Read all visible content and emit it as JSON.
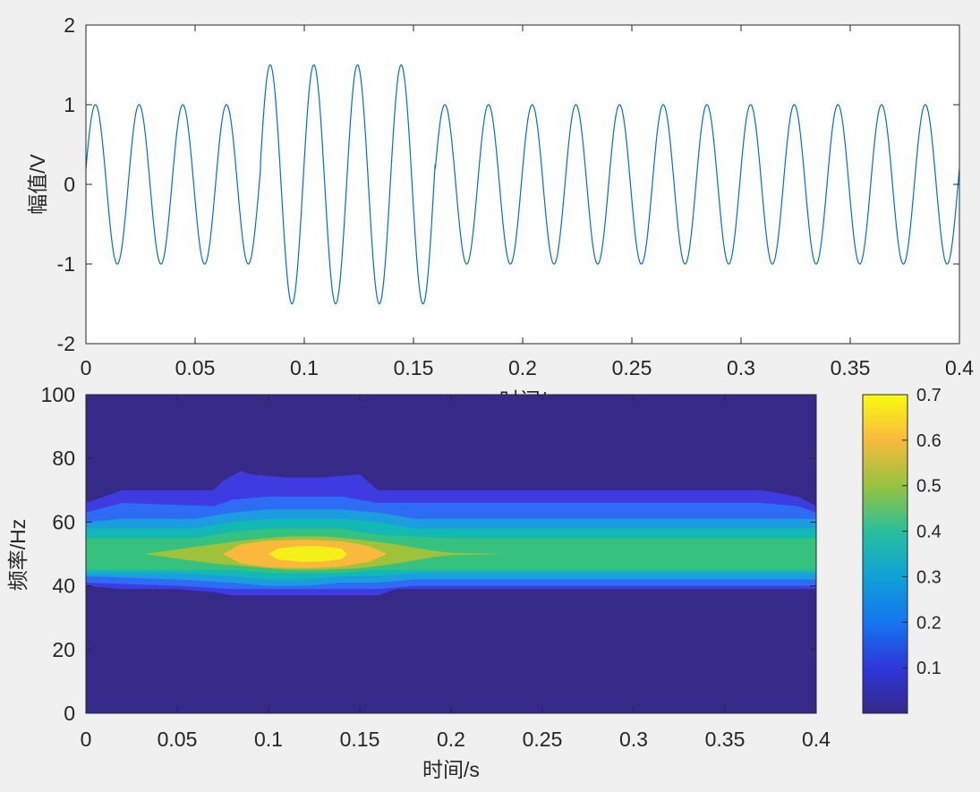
{
  "chart_data": [
    {
      "type": "line",
      "title": "",
      "xlabel": "时间/",
      "ylabel": "幅值/V",
      "xlim": [
        0,
        0.4
      ],
      "ylim": [
        -2,
        2
      ],
      "xticks": [
        "0",
        "0.05",
        "0.1",
        "0.15",
        "0.2",
        "0.25",
        "0.3",
        "0.35",
        "0.4"
      ],
      "yticks": [
        "-2",
        "-1",
        "0",
        "1",
        "2"
      ],
      "series": [
        {
          "color": "#0072bd",
          "frequency_hz": 50,
          "segments": [
            {
              "t_start": 0,
              "t_end": 0.08,
              "amplitude": 1
            },
            {
              "t_start": 0.08,
              "t_end": 0.16,
              "amplitude": 1.5
            },
            {
              "t_start": 0.16,
              "t_end": 0.4,
              "amplitude": 1
            }
          ]
        }
      ]
    },
    {
      "type": "heatmap",
      "title": "",
      "xlabel": "时间/s",
      "ylabel": "频率/Hz",
      "xlim": [
        0,
        0.4
      ],
      "ylim": [
        0,
        100
      ],
      "xticks": [
        "0",
        "0.05",
        "0.1",
        "0.15",
        "0.2",
        "0.25",
        "0.3",
        "0.35",
        "0.4"
      ],
      "yticks": [
        "0",
        "20",
        "40",
        "60",
        "80",
        "100"
      ],
      "colorbar": {
        "range": [
          0,
          0.7
        ],
        "ticks": [
          "0.1",
          "0.2",
          "0.3",
          "0.4",
          "0.5",
          "0.6",
          "0.7"
        ]
      },
      "background_level": 0.02,
      "contour_bands": [
        {
          "level": 0.05,
          "color": "#3e3be0",
          "points": [
            [
              0,
              40
            ],
            [
              0.02,
              39
            ],
            [
              0.05,
              39
            ],
            [
              0.07,
              38
            ],
            [
              0.08,
              37
            ],
            [
              0.09,
              37
            ],
            [
              0.1,
              37
            ],
            [
              0.11,
              37
            ],
            [
              0.12,
              37
            ],
            [
              0.13,
              37
            ],
            [
              0.14,
              37
            ],
            [
              0.15,
              37
            ],
            [
              0.16,
              37
            ],
            [
              0.17,
              39
            ],
            [
              0.18,
              39
            ],
            [
              0.4,
              39
            ],
            [
              0.4,
              65
            ],
            [
              0.39,
              68
            ],
            [
              0.37,
              70
            ],
            [
              0.18,
              70
            ],
            [
              0.16,
              70
            ],
            [
              0.15,
              75
            ],
            [
              0.13,
              74
            ],
            [
              0.11,
              74
            ],
            [
              0.09,
              75
            ],
            [
              0.085,
              76
            ],
            [
              0.075,
              73
            ],
            [
              0.07,
              70
            ],
            [
              0.02,
              70
            ],
            [
              0,
              66
            ]
          ]
        },
        {
          "level": 0.1,
          "color": "#2e6cf5",
          "points": [
            [
              0,
              41
            ],
            [
              0.05,
              40
            ],
            [
              0.08,
              39
            ],
            [
              0.1,
              39
            ],
            [
              0.12,
              39
            ],
            [
              0.14,
              39
            ],
            [
              0.16,
              39
            ],
            [
              0.18,
              40
            ],
            [
              0.4,
              40
            ],
            [
              0.4,
              63
            ],
            [
              0.39,
              65
            ],
            [
              0.37,
              66
            ],
            [
              0.18,
              66
            ],
            [
              0.16,
              66
            ],
            [
              0.14,
              68
            ],
            [
              0.12,
              68
            ],
            [
              0.1,
              68
            ],
            [
              0.08,
              67
            ],
            [
              0.07,
              65
            ],
            [
              0.02,
              66
            ],
            [
              0,
              63
            ]
          ]
        },
        {
          "level": 0.2,
          "color": "#1c9ddf",
          "points": [
            [
              0,
              43
            ],
            [
              0.05,
              42
            ],
            [
              0.08,
              41
            ],
            [
              0.1,
              40
            ],
            [
              0.12,
              40
            ],
            [
              0.14,
              41
            ],
            [
              0.16,
              41
            ],
            [
              0.18,
              42
            ],
            [
              0.4,
              42
            ],
            [
              0.4,
              61
            ],
            [
              0.38,
              61
            ],
            [
              0.18,
              61
            ],
            [
              0.16,
              63
            ],
            [
              0.14,
              64
            ],
            [
              0.12,
              64
            ],
            [
              0.1,
              64
            ],
            [
              0.08,
              63
            ],
            [
              0.06,
              61
            ],
            [
              0.02,
              61
            ],
            [
              0,
              60
            ]
          ]
        },
        {
          "level": 0.3,
          "color": "#11b8b4",
          "points": [
            [
              0,
              44
            ],
            [
              0.05,
              44
            ],
            [
              0.08,
              43
            ],
            [
              0.1,
              42
            ],
            [
              0.12,
              42
            ],
            [
              0.14,
              43
            ],
            [
              0.16,
              43
            ],
            [
              0.18,
              44
            ],
            [
              0.4,
              44
            ],
            [
              0.4,
              58
            ],
            [
              0.18,
              58
            ],
            [
              0.16,
              60
            ],
            [
              0.14,
              61
            ],
            [
              0.12,
              61
            ],
            [
              0.1,
              61
            ],
            [
              0.08,
              60
            ],
            [
              0.06,
              58
            ],
            [
              0,
              58
            ]
          ]
        },
        {
          "level": 0.4,
          "color": "#35c17e",
          "points": [
            [
              0,
              45
            ],
            [
              0.05,
              45
            ],
            [
              0.08,
              45
            ],
            [
              0.1,
              44
            ],
            [
              0.12,
              44
            ],
            [
              0.14,
              44
            ],
            [
              0.16,
              45
            ],
            [
              0.2,
              45
            ],
            [
              0.4,
              45
            ],
            [
              0.4,
              55
            ],
            [
              0.2,
              55
            ],
            [
              0.16,
              56
            ],
            [
              0.14,
              58
            ],
            [
              0.12,
              58
            ],
            [
              0.1,
              58
            ],
            [
              0.08,
              57
            ],
            [
              0.06,
              55
            ],
            [
              0,
              55
            ]
          ]
        },
        {
          "level": 0.5,
          "color": "#9ec23a",
          "points": [
            [
              0.032,
              50
            ],
            [
              0.05,
              48.5
            ],
            [
              0.07,
              47
            ],
            [
              0.09,
              46
            ],
            [
              0.11,
              45
            ],
            [
              0.13,
              45
            ],
            [
              0.15,
              45.5
            ],
            [
              0.17,
              47
            ],
            [
              0.19,
              49
            ],
            [
              0.2,
              49.6
            ],
            [
              0.23,
              50
            ],
            [
              0.2,
              50.4
            ],
            [
              0.19,
              51
            ],
            [
              0.17,
              53
            ],
            [
              0.15,
              54.5
            ],
            [
              0.13,
              55.5
            ],
            [
              0.11,
              55.5
            ],
            [
              0.09,
              54.5
            ],
            [
              0.07,
              53
            ],
            [
              0.05,
              51.5
            ]
          ]
        },
        {
          "level": 0.6,
          "color": "#f9b93c",
          "points": [
            [
              0.075,
              50
            ],
            [
              0.085,
              47
            ],
            [
              0.1,
              45.8
            ],
            [
              0.12,
              45.5
            ],
            [
              0.14,
              46
            ],
            [
              0.155,
              47.5
            ],
            [
              0.165,
              50
            ],
            [
              0.155,
              52.5
            ],
            [
              0.14,
              54
            ],
            [
              0.12,
              54.5
            ],
            [
              0.1,
              54.2
            ],
            [
              0.085,
              53
            ]
          ]
        },
        {
          "level": 0.7,
          "color": "#f3f118",
          "points": [
            [
              0.1,
              50
            ],
            [
              0.105,
              48.3
            ],
            [
              0.118,
              47.5
            ],
            [
              0.13,
              47.6
            ],
            [
              0.14,
              48.4
            ],
            [
              0.143,
              50
            ],
            [
              0.14,
              51.6
            ],
            [
              0.13,
              52.4
            ],
            [
              0.118,
              52.5
            ],
            [
              0.105,
              51.7
            ]
          ]
        }
      ]
    }
  ]
}
